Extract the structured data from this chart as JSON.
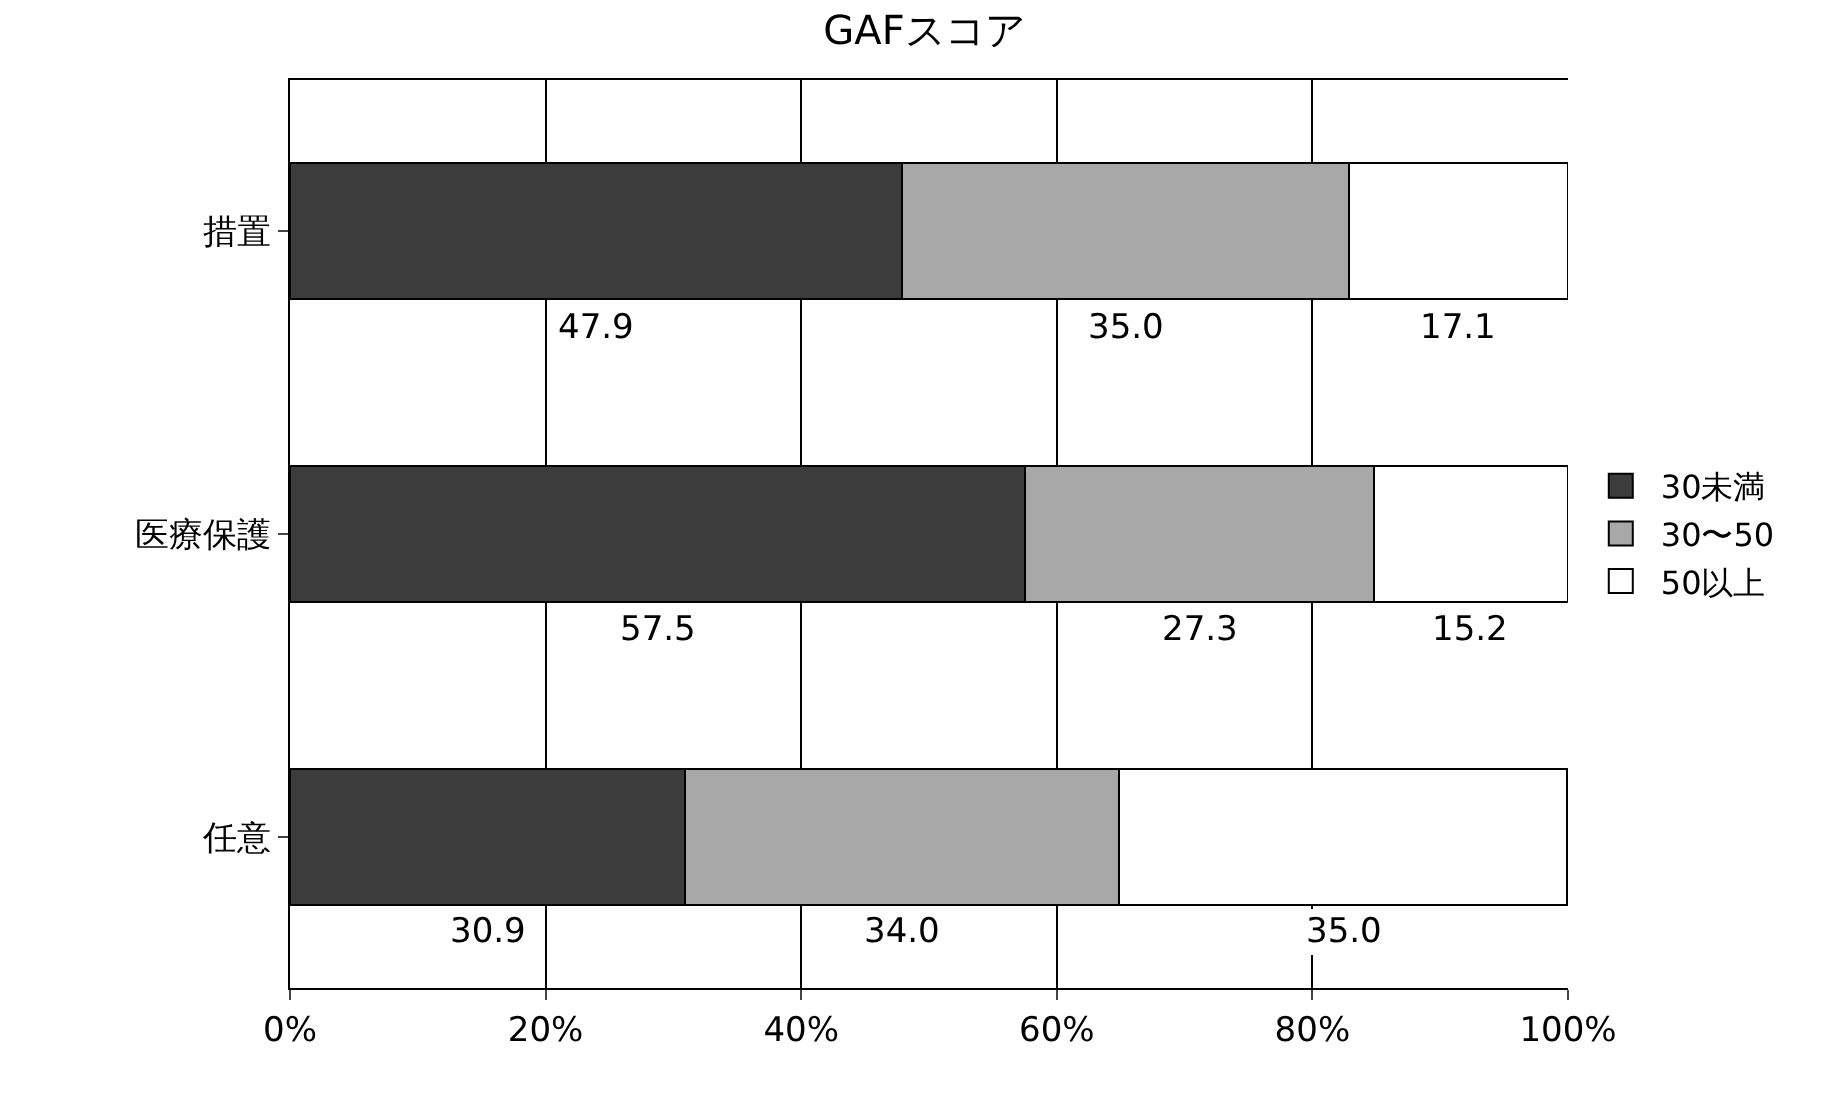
{
  "chart_data": {
    "type": "bar",
    "title": "GAFスコア",
    "orientation": "horizontal",
    "stacked": true,
    "categories": [
      "措置",
      "医療保護",
      "任意"
    ],
    "series": [
      {
        "name": "30未満",
        "color": "#3c3c3c",
        "values": [
          47.9,
          57.5,
          30.9
        ],
        "value_labels": [
          "47.9",
          "57.5",
          "30.9"
        ]
      },
      {
        "name": "30〜50",
        "color": "#a8a8a8",
        "values": [
          35.0,
          27.3,
          34.0
        ],
        "value_labels": [
          "35.0",
          "27.3",
          "34.0"
        ]
      },
      {
        "name": "50以上",
        "color": "#ffffff",
        "values": [
          17.1,
          15.2,
          35.0
        ],
        "value_labels": [
          "17.1",
          "15.2",
          "35.0"
        ]
      }
    ],
    "xlim": [
      0,
      100
    ],
    "xticks": [
      {
        "value": 0,
        "label": "0%"
      },
      {
        "value": 20,
        "label": "20%"
      },
      {
        "value": 40,
        "label": "40%"
      },
      {
        "value": 60,
        "label": "60%"
      },
      {
        "value": 80,
        "label": "80%"
      },
      {
        "value": 100,
        "label": "100%"
      }
    ],
    "grid": "x",
    "legend": "right"
  }
}
